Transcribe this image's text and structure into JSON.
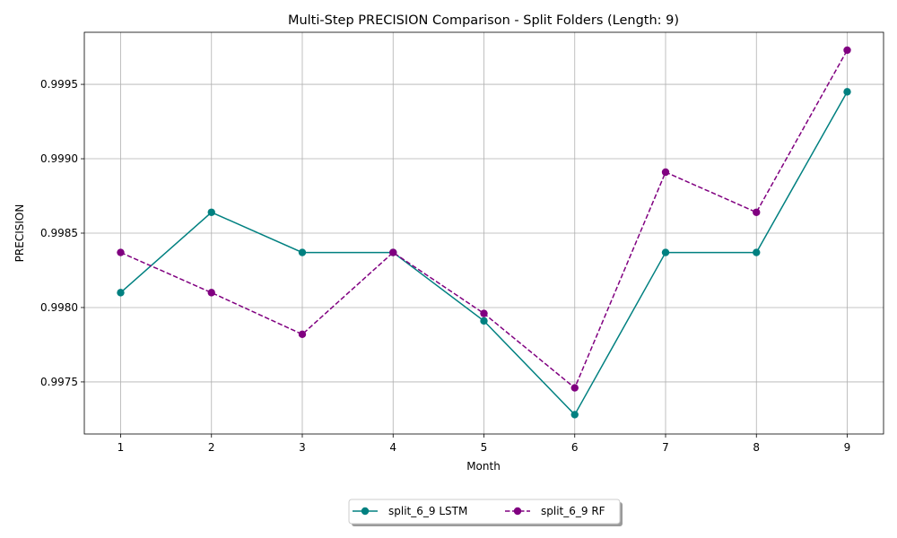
{
  "chart_data": {
    "type": "line",
    "title": "Multi-Step PRECISION Comparison - Split Folders (Length: 9)",
    "xlabel": "Month",
    "ylabel": "PRECISION",
    "x": [
      1,
      2,
      3,
      4,
      5,
      6,
      7,
      8,
      9
    ],
    "xlim": [
      0.6,
      9.4
    ],
    "ylim": [
      0.99715,
      0.99985
    ],
    "yticks": [
      "0.9975",
      "0.9980",
      "0.9985",
      "0.9990",
      "0.9995"
    ],
    "yticks_values": [
      0.9975,
      0.998,
      0.9985,
      0.999,
      0.9995
    ],
    "grid": true,
    "legend_position": "bottom-center",
    "series": [
      {
        "name": "split_6_9 LSTM",
        "color": "#008080",
        "linestyle": "solid",
        "marker": "circle",
        "values": [
          0.9981,
          0.99864,
          0.99837,
          0.99837,
          0.99791,
          0.99728,
          0.99837,
          0.99837,
          0.99945
        ]
      },
      {
        "name": "split_6_9 RF",
        "color": "#800080",
        "linestyle": "dashed",
        "marker": "circle",
        "values": [
          0.99837,
          0.9981,
          0.99782,
          0.99837,
          0.99796,
          0.99746,
          0.99891,
          0.99864,
          0.99973
        ]
      }
    ]
  }
}
